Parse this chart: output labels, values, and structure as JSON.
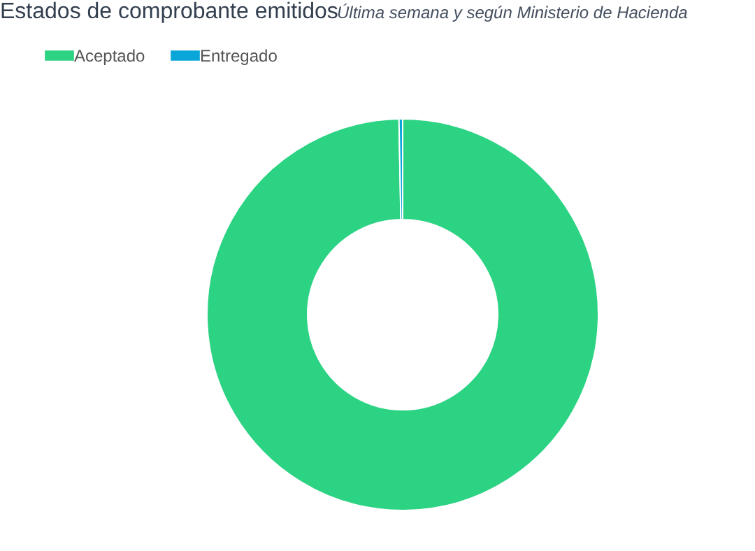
{
  "chart_data": {
    "type": "donut",
    "title": "Estados de comprobante emitidos",
    "subtitle": "Última semana y según Ministerio de Hacienda",
    "categories": [
      "Aceptado",
      "Entregado"
    ],
    "values": [
      99.7,
      0.3
    ],
    "colors": [
      "#2cd383",
      "#0aa6d9"
    ],
    "legend": "top"
  }
}
